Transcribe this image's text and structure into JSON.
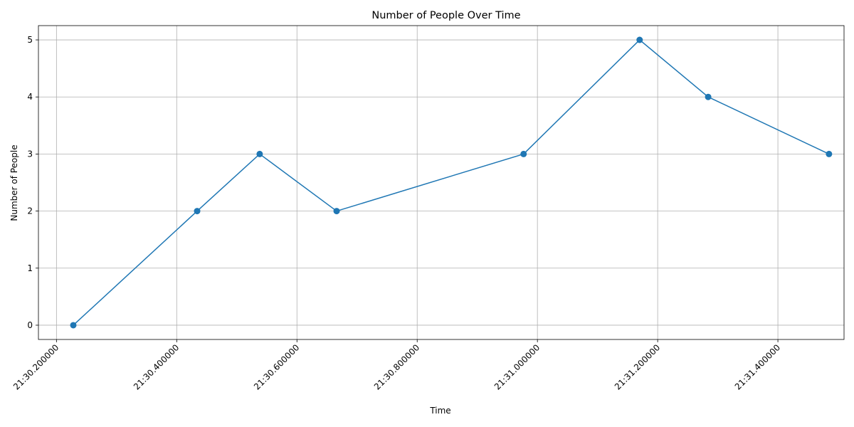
{
  "chart_data": {
    "type": "line",
    "title": "Number of People Over Time",
    "xlabel": "Time",
    "ylabel": "Number of People",
    "x_ticks": [
      "21:30.200000",
      "21:30.400000",
      "21:30.600000",
      "21:30.800000",
      "21:31.000000",
      "21:31.200000",
      "21:31.400000"
    ],
    "x_tick_values": [
      30.2,
      30.4,
      30.6,
      30.8,
      31.0,
      31.2,
      31.4
    ],
    "y_ticks": [
      "0",
      "1",
      "2",
      "3",
      "4",
      "5"
    ],
    "y_tick_values": [
      0,
      1,
      2,
      3,
      4,
      5
    ],
    "xlim": [
      30.17,
      31.51
    ],
    "ylim": [
      -0.25,
      5.25
    ],
    "grid": true,
    "series": [
      {
        "color": "#1f77b4",
        "marker": "circle",
        "points": [
          {
            "x": 30.228,
            "y": 0
          },
          {
            "x": 30.434,
            "y": 2
          },
          {
            "x": 30.538,
            "y": 3
          },
          {
            "x": 30.666,
            "y": 2
          },
          {
            "x": 30.977,
            "y": 3
          },
          {
            "x": 31.17,
            "y": 5
          },
          {
            "x": 31.284,
            "y": 4
          },
          {
            "x": 31.485,
            "y": 3
          }
        ]
      }
    ]
  }
}
